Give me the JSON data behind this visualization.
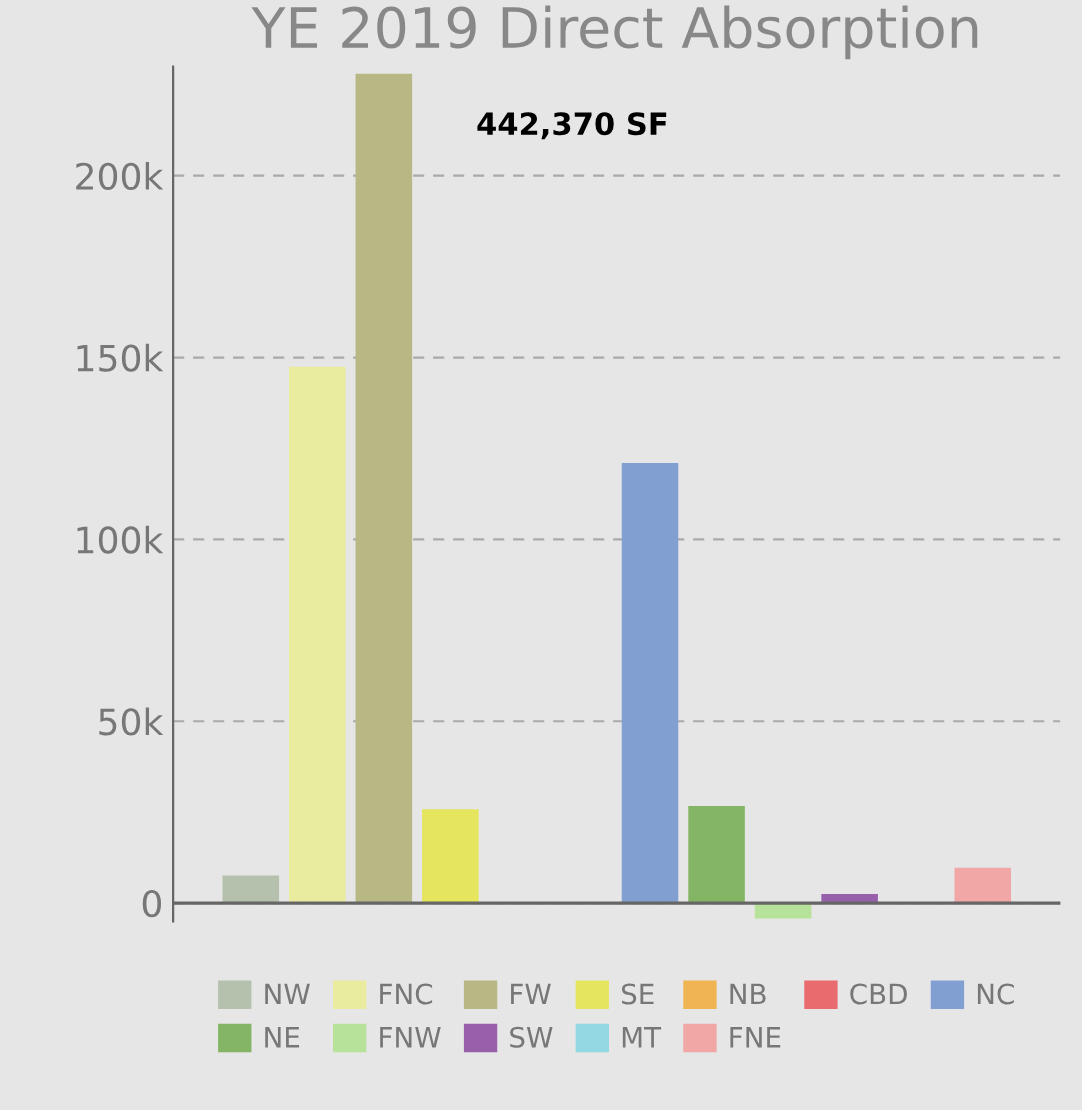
{
  "chart_data": {
    "type": "bar",
    "title": "YE 2019 Direct Absorption",
    "annotations": [
      "442,370 SF"
    ],
    "categories": [
      null
    ],
    "series": [
      {
        "name": "NW",
        "color": "#b5c0ad",
        "values": [
          7600
        ]
      },
      {
        "name": "FNC",
        "color": "#e9ec9e",
        "values": [
          147500
        ]
      },
      {
        "name": "FW",
        "color": "#b8b885",
        "values": [
          228000
        ]
      },
      {
        "name": "SE",
        "color": "#e5e55e",
        "values": [
          25800
        ]
      },
      {
        "name": "NB",
        "color": "#f0b552",
        "values": [
          0
        ]
      },
      {
        "name": "CBD",
        "color": "#e96b6e",
        "values": [
          0
        ]
      },
      {
        "name": "NC",
        "color": "#829fd1",
        "values": [
          121000
        ]
      },
      {
        "name": "NE",
        "color": "#84b565",
        "values": [
          26700
        ]
      },
      {
        "name": "FNW",
        "color": "#b7e29a",
        "values": [
          -4200
        ]
      },
      {
        "name": "SW",
        "color": "#9860ab",
        "values": [
          2500
        ]
      },
      {
        "name": "MT",
        "color": "#93d8e2",
        "values": [
          0
        ]
      },
      {
        "name": "FNE",
        "color": "#f2a7a7",
        "values": [
          9700
        ]
      }
    ],
    "ylim": [
      -5000,
      230000
    ],
    "yticks": [
      {
        "value": 0,
        "label": "0"
      },
      {
        "value": 50000,
        "label": "50k"
      },
      {
        "value": 100000,
        "label": "100k"
      },
      {
        "value": 150000,
        "label": "150k"
      },
      {
        "value": 200000,
        "label": "200k"
      }
    ],
    "grid": "y",
    "legend": "bottom"
  }
}
